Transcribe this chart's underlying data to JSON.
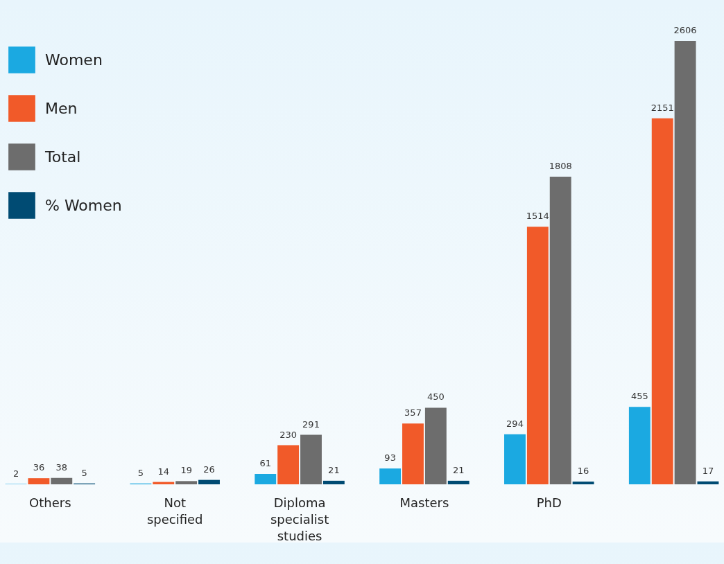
{
  "chart_data": {
    "type": "bar",
    "categories": [
      "Others",
      "Not specified",
      "Diploma specialist studies",
      "Masters",
      "PhD",
      null
    ],
    "series": [
      {
        "name": "Women",
        "color": "#1ba9e1",
        "values": [
          2,
          5,
          61,
          93,
          294,
          455
        ]
      },
      {
        "name": "Men",
        "color": "#f15a29",
        "values": [
          36,
          14,
          230,
          357,
          1514,
          2151
        ]
      },
      {
        "name": "Total",
        "color": "#6d6d6d",
        "values": [
          38,
          19,
          291,
          450,
          1808,
          2606
        ]
      },
      {
        "name": "% Women",
        "color": "#004b73",
        "values": [
          5,
          26,
          21,
          21,
          16,
          17
        ]
      }
    ],
    "data_labels": true,
    "legend": "top left"
  }
}
